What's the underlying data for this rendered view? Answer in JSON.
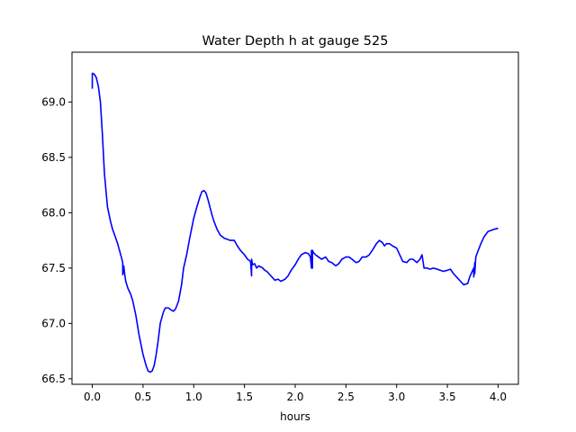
{
  "chart_data": {
    "type": "line",
    "title": "Water Depth h at gauge 525",
    "xlabel": "hours",
    "ylabel": "",
    "xlim": [
      -0.2,
      4.2
    ],
    "ylim": [
      66.45,
      69.45
    ],
    "xticks": [
      0.0,
      0.5,
      1.0,
      1.5,
      2.0,
      2.5,
      3.0,
      3.5,
      4.0
    ],
    "xtick_labels": [
      "0.0",
      "0.5",
      "1.0",
      "1.5",
      "2.0",
      "2.5",
      "3.0",
      "3.5",
      "4.0"
    ],
    "yticks": [
      66.5,
      67.0,
      67.5,
      68.0,
      68.5,
      69.0
    ],
    "ytick_labels": [
      "66.5",
      "67.0",
      "67.5",
      "68.0",
      "68.5",
      "69.0"
    ],
    "grid": false,
    "series": [
      {
        "color": "#0000ff",
        "x": [
          0.0,
          0.0,
          0.02,
          0.04,
          0.06,
          0.08,
          0.1,
          0.12,
          0.15,
          0.18,
          0.2,
          0.22,
          0.25,
          0.28,
          0.3,
          0.3,
          0.31,
          0.31,
          0.32,
          0.33,
          0.35,
          0.38,
          0.4,
          0.43,
          0.46,
          0.5,
          0.53,
          0.55,
          0.57,
          0.59,
          0.61,
          0.63,
          0.65,
          0.67,
          0.7,
          0.72,
          0.75,
          0.78,
          0.8,
          0.82,
          0.85,
          0.88,
          0.9,
          0.93,
          0.96,
          1.0,
          1.03,
          1.06,
          1.08,
          1.1,
          1.12,
          1.14,
          1.16,
          1.18,
          1.2,
          1.23,
          1.26,
          1.3,
          1.33,
          1.36,
          1.4,
          1.43,
          1.46,
          1.5,
          1.53,
          1.56,
          1.57,
          1.57,
          1.58,
          1.6,
          1.62,
          1.64,
          1.66,
          1.68,
          1.7,
          1.72,
          1.74,
          1.76,
          1.78,
          1.8,
          1.83,
          1.86,
          1.9,
          1.93,
          1.96,
          2.0,
          2.03,
          2.06,
          2.1,
          2.13,
          2.15,
          2.16,
          2.16,
          2.17,
          2.17,
          2.18,
          2.2,
          2.23,
          2.26,
          2.3,
          2.33,
          2.36,
          2.4,
          2.43,
          2.46,
          2.5,
          2.53,
          2.56,
          2.6,
          2.63,
          2.66,
          2.7,
          2.73,
          2.76,
          2.8,
          2.83,
          2.86,
          2.88,
          2.9,
          2.93,
          2.96,
          3.0,
          3.03,
          3.06,
          3.1,
          3.13,
          3.16,
          3.2,
          3.23,
          3.25,
          3.27,
          3.3,
          3.33,
          3.36,
          3.4,
          3.43,
          3.46,
          3.5,
          3.53,
          3.56,
          3.6,
          3.63,
          3.66,
          3.7,
          3.72,
          3.74,
          3.76,
          3.76,
          3.77,
          3.77,
          3.78,
          3.8,
          3.83,
          3.86,
          3.9,
          3.93,
          3.96,
          4.0
        ],
        "values": [
          69.12,
          69.26,
          69.25,
          69.22,
          69.14,
          69.0,
          68.7,
          68.35,
          68.05,
          67.92,
          67.85,
          67.8,
          67.72,
          67.62,
          67.55,
          67.44,
          67.5,
          67.52,
          67.44,
          67.38,
          67.32,
          67.26,
          67.2,
          67.07,
          66.9,
          66.72,
          66.62,
          66.57,
          66.56,
          66.57,
          66.62,
          66.72,
          66.85,
          67.0,
          67.1,
          67.14,
          67.14,
          67.12,
          67.11,
          67.13,
          67.2,
          67.35,
          67.5,
          67.62,
          67.77,
          67.95,
          68.05,
          68.14,
          68.19,
          68.2,
          68.18,
          68.12,
          68.05,
          67.98,
          67.92,
          67.85,
          67.8,
          67.77,
          67.76,
          67.75,
          67.75,
          67.7,
          67.66,
          67.62,
          67.58,
          67.56,
          67.43,
          67.58,
          67.53,
          67.54,
          67.5,
          67.52,
          67.51,
          67.5,
          67.48,
          67.47,
          67.45,
          67.43,
          67.41,
          67.39,
          67.4,
          67.38,
          67.4,
          67.43,
          67.48,
          67.53,
          67.58,
          67.62,
          67.64,
          67.63,
          67.6,
          67.5,
          67.66,
          67.5,
          67.66,
          67.64,
          67.62,
          67.6,
          67.58,
          67.6,
          67.56,
          67.55,
          67.52,
          67.54,
          67.58,
          67.6,
          67.6,
          67.58,
          67.55,
          67.56,
          67.6,
          67.6,
          67.62,
          67.66,
          67.72,
          67.75,
          67.73,
          67.7,
          67.72,
          67.72,
          67.7,
          67.68,
          67.62,
          67.56,
          67.55,
          67.58,
          67.58,
          67.55,
          67.58,
          67.62,
          67.5,
          67.5,
          67.49,
          67.5,
          67.49,
          67.48,
          67.47,
          67.48,
          67.49,
          67.45,
          67.41,
          67.38,
          67.35,
          67.36,
          67.42,
          67.46,
          67.5,
          67.42,
          67.55,
          67.45,
          67.6,
          67.65,
          67.72,
          67.78,
          67.83,
          67.84,
          67.85,
          67.86
        ]
      }
    ]
  }
}
